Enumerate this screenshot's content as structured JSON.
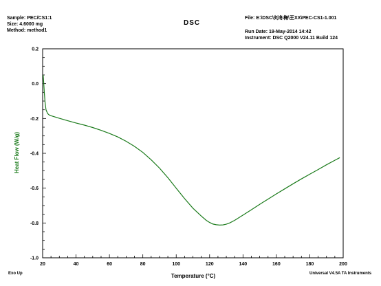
{
  "header": {
    "sample": "Sample: PEC/CS1:1",
    "size": "Size:  4.6000 mg",
    "method": "Method: method1",
    "title": "DSC",
    "file": "File: E:\\DSC\\刘冬梅\\王XX\\PEC-CS1-1.001",
    "run_date": "Run Date: 19-May-2014 14:42",
    "instrument": "Instrument: DSC Q2000 V24.11 Build 124"
  },
  "footer": {
    "exo": "Exo Up",
    "software": "Universal V4.5A TA Instruments"
  },
  "colors": {
    "curve": "#1a7a1a",
    "ylabel": "#1a7a1a",
    "axis": "#000000"
  },
  "chart_data": {
    "type": "line",
    "xlabel": "Temperature (°C)",
    "ylabel": "Heat Flow (W/g)",
    "xlim": [
      20,
      200
    ],
    "ylim": [
      -1.0,
      0.2
    ],
    "x_ticks": [
      20,
      40,
      60,
      80,
      100,
      120,
      140,
      160,
      180,
      200
    ],
    "y_ticks": [
      0.2,
      0.0,
      -0.2,
      -0.4,
      -0.6,
      -0.8,
      -1.0
    ],
    "x_tick_labels": [
      "20",
      "40",
      "60",
      "80",
      "100",
      "120",
      "140",
      "160",
      "180",
      "200"
    ],
    "y_tick_labels": [
      "0.2",
      "0.0",
      "-0.2",
      "-0.4",
      "-0.6",
      "-0.8",
      "-1.0"
    ],
    "series": [
      {
        "x": [
          20.3,
          20.6,
          21,
          21.5,
          22,
          23,
          24,
          25,
          27,
          30,
          35,
          40,
          45,
          50,
          55,
          60,
          65,
          70,
          75,
          80,
          85,
          90,
          95,
          100,
          105,
          110,
          115,
          118,
          120,
          122,
          124,
          126,
          128,
          130,
          132,
          135,
          140,
          145,
          150,
          155,
          160,
          165,
          170,
          175,
          180,
          185,
          190,
          195,
          198
        ],
        "y": [
          0.05,
          0.01,
          -0.05,
          -0.11,
          -0.15,
          -0.172,
          -0.18,
          -0.184,
          -0.19,
          -0.199,
          -0.213,
          -0.226,
          -0.238,
          -0.252,
          -0.268,
          -0.286,
          -0.306,
          -0.331,
          -0.36,
          -0.395,
          -0.437,
          -0.485,
          -0.54,
          -0.6,
          -0.66,
          -0.715,
          -0.76,
          -0.785,
          -0.797,
          -0.806,
          -0.81,
          -0.812,
          -0.811,
          -0.807,
          -0.8,
          -0.785,
          -0.755,
          -0.724,
          -0.693,
          -0.663,
          -0.633,
          -0.604,
          -0.575,
          -0.547,
          -0.52,
          -0.493,
          -0.466,
          -0.44,
          -0.425
        ]
      }
    ]
  }
}
